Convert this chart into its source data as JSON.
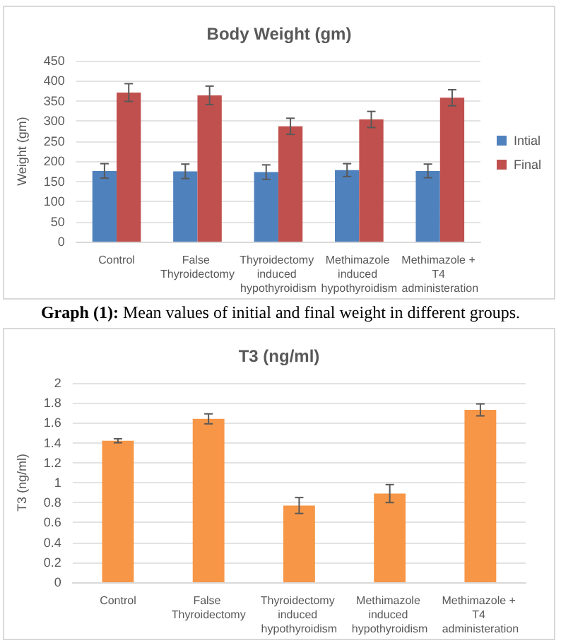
{
  "chart_data": [
    {
      "type": "bar",
      "title": "Body Weight (gm)",
      "ylabel": "Weight (gm)",
      "categories": [
        "Control",
        "False Thyroidectomy",
        "Thyroidectomy induced hypothyroidism",
        "Methimazole induced hypothyroidism",
        "Methimazole + T4 administeration"
      ],
      "series": [
        {
          "name": "Intial",
          "color": "#4f81bd",
          "values": [
            176,
            175,
            173,
            178,
            176
          ],
          "errors": [
            18,
            18,
            18,
            16,
            17
          ]
        },
        {
          "name": "Final",
          "color": "#c0504d",
          "values": [
            371,
            364,
            287,
            304,
            358
          ],
          "errors": [
            22,
            23,
            20,
            20,
            20
          ]
        }
      ],
      "ylim": [
        0,
        450
      ],
      "yticks": [
        0,
        50,
        100,
        150,
        200,
        250,
        300,
        350,
        400,
        450
      ],
      "grid": "y",
      "legend": "right",
      "annotations": [
        "Graph (1): Mean values of initial and final weight in different groups."
      ]
    },
    {
      "type": "bar",
      "title": "T3 (ng/ml)",
      "ylabel": "T3 (ng/ml)",
      "categories": [
        "Control",
        "False Thyroidectomy",
        "Thyroidectomy induced hypothyroidism",
        "Methimazole induced hypothyroidism",
        "Methimazole + T4 administeration"
      ],
      "series": [
        {
          "color": "#f79646",
          "values": [
            1.42,
            1.64,
            0.77,
            0.89,
            1.73
          ],
          "errors": [
            0.02,
            0.05,
            0.08,
            0.09,
            0.06
          ]
        }
      ],
      "ylim": [
        0,
        2
      ],
      "yticks": [
        0,
        0.2,
        0.4,
        0.6,
        0.8,
        1,
        1.2,
        1.4,
        1.6,
        1.8,
        2
      ],
      "grid": "y",
      "legend": false
    }
  ]
}
